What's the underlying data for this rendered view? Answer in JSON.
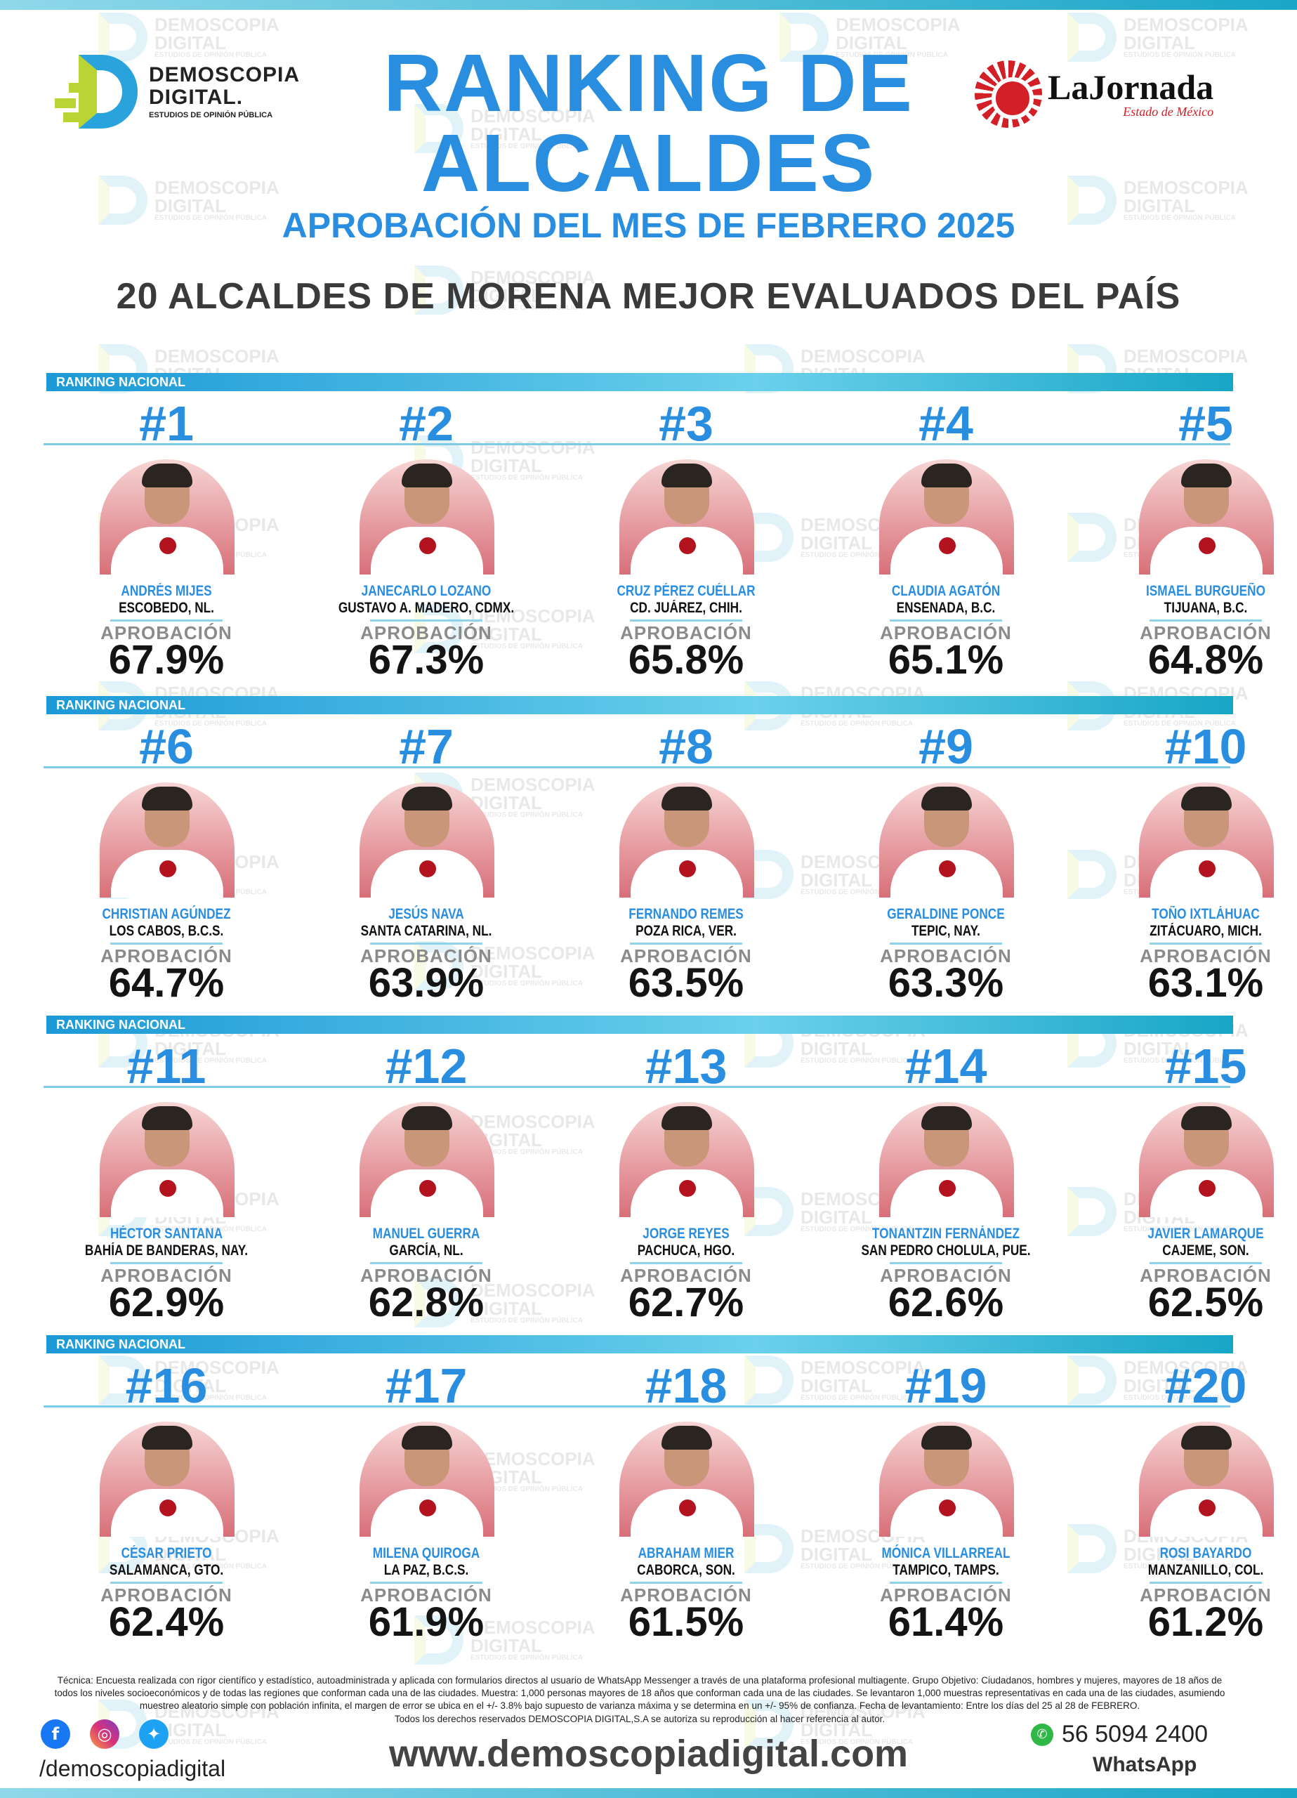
{
  "header": {
    "title_line1": "RANKING DE",
    "title_line2": "ALCALDES",
    "subtitle": "APROBACIÓN DEL MES DE FEBRERO 2025",
    "headline": "20 ALCALDES DE MORENA MEJOR EVALUADOS DEL PAÍS"
  },
  "brand": {
    "name_line1": "DEMOSCOPIA",
    "name_line2": "DIGITAL.",
    "tagline": "ESTUDIOS DE OPINIÓN PÚBLICA"
  },
  "partner": {
    "name": "LaJornada",
    "region": "Estado de México"
  },
  "watermark": {
    "line1": "DEMOSCOPIA",
    "line2": "DIGITAL",
    "line3": "ESTUDIOS DE OPINIÓN PÚBLICA"
  },
  "section_label": "RANKING NACIONAL",
  "approval_label": "APROBACIÓN",
  "mayors": [
    {
      "rank": "#1",
      "name": "ANDRÉS MIJES",
      "location": "ESCOBEDO, NL.",
      "approval": "67.9%",
      "approval_value": 67.9
    },
    {
      "rank": "#2",
      "name": "JANECARLO LOZANO",
      "location": "GUSTAVO A. MADERO, CDMX.",
      "approval": "67.3%",
      "approval_value": 67.3
    },
    {
      "rank": "#3",
      "name": "CRUZ PÉREZ CUÉLLAR",
      "location": "CD. JUÁREZ, CHIH.",
      "approval": "65.8%",
      "approval_value": 65.8
    },
    {
      "rank": "#4",
      "name": "CLAUDIA AGATÓN",
      "location": "ENSENADA, B.C.",
      "approval": "65.1%",
      "approval_value": 65.1
    },
    {
      "rank": "#5",
      "name": "ISMAEL BURGUEÑO",
      "location": "TIJUANA, B.C.",
      "approval": "64.8%",
      "approval_value": 64.8
    },
    {
      "rank": "#6",
      "name": "CHRISTIAN AGÚNDEZ",
      "location": "LOS CABOS, B.C.S.",
      "approval": "64.7%",
      "approval_value": 64.7
    },
    {
      "rank": "#7",
      "name": "JESÚS NAVA",
      "location": "SANTA CATARINA, NL.",
      "approval": "63.9%",
      "approval_value": 63.9
    },
    {
      "rank": "#8",
      "name": "FERNANDO REMES",
      "location": "POZA RICA, VER.",
      "approval": "63.5%",
      "approval_value": 63.5
    },
    {
      "rank": "#9",
      "name": "GERALDINE PONCE",
      "location": "TEPIC, NAY.",
      "approval": "63.3%",
      "approval_value": 63.3
    },
    {
      "rank": "#10",
      "name": "TOÑO IXTLÁHUAC",
      "location": "ZITÁCUARO, MICH.",
      "approval": "63.1%",
      "approval_value": 63.1
    },
    {
      "rank": "#11",
      "name": "HÉCTOR SANTANA",
      "location": "BAHÍA DE BANDERAS, NAY.",
      "approval": "62.9%",
      "approval_value": 62.9
    },
    {
      "rank": "#12",
      "name": "MANUEL GUERRA",
      "location": "GARCÍA, NL.",
      "approval": "62.8%",
      "approval_value": 62.8
    },
    {
      "rank": "#13",
      "name": "JORGE REYES",
      "location": "PACHUCA, HGO.",
      "approval": "62.7%",
      "approval_value": 62.7
    },
    {
      "rank": "#14",
      "name": "TONANTZIN FERNÁNDEZ",
      "location": "SAN PEDRO CHOLULA, PUE.",
      "approval": "62.6%",
      "approval_value": 62.6
    },
    {
      "rank": "#15",
      "name": "JAVIER LAMARQUE",
      "location": "CAJEME, SON.",
      "approval": "62.5%",
      "approval_value": 62.5
    },
    {
      "rank": "#16",
      "name": "CÉSAR PRIETO",
      "location": "SALAMANCA, GTO.",
      "approval": "62.4%",
      "approval_value": 62.4
    },
    {
      "rank": "#17",
      "name": "MILENA QUIROGA",
      "location": "LA PAZ, B.C.S.",
      "approval": "61.9%",
      "approval_value": 61.9
    },
    {
      "rank": "#18",
      "name": "ABRAHAM MIER",
      "location": "CABORCA, SON.",
      "approval": "61.5%",
      "approval_value": 61.5
    },
    {
      "rank": "#19",
      "name": "MÓNICA VILLARREAL",
      "location": "TAMPICO, TAMPS.",
      "approval": "61.4%",
      "approval_value": 61.4
    },
    {
      "rank": "#20",
      "name": "ROSI BAYARDO",
      "location": "MANZANILLO, COL.",
      "approval": "61.2%",
      "approval_value": 61.2
    }
  ],
  "footer": {
    "methodology": "Técnica: Encuesta realizada con rigor científico y estadístico, autoadministrada y aplicada con formularios directos al usuario de WhatsApp Messenger a través de una plataforma profesional multiagente. Grupo Objetivo: Ciudadanos, hombres y mujeres, mayores de 18 años de todos los niveles socioeconómicos y de todas las regiones que conforman cada una de las ciudades. Muestra: 1,000 personas mayores de 18 años que conforman cada una de las ciudades. Se levantaron 1,000 muestras representativas en cada una de las ciudades, asumiendo muestreo aleatorio simple con población infinita, el margen de error se ubica en el +/- 3.8% bajo supuesto de varianza máxima y se determina en un +/- 95% de confianza. Fecha de levantamiento: Entre los días del 25 al 28 de FEBRERO.",
    "rights": "Todos los derechos reservados DEMOSCOPIA DIGITAL,S.A se autoriza su reproducción al hacer referencia al autor.",
    "handle": "/demoscopiadigital",
    "website": "www.demoscopiadigital.com",
    "phone": "56 5094 2400",
    "phone_label": "WhatsApp"
  },
  "icons": {
    "facebook": "facebook-icon",
    "instagram": "instagram-icon",
    "twitter": "twitter-icon",
    "whatsapp": "whatsapp-icon"
  },
  "colors": {
    "accent_blue": "#2a8ee0",
    "brand_green": "#b9d433",
    "jornada_red": "#d31f26",
    "band_cyan": "#6ad0ec"
  }
}
